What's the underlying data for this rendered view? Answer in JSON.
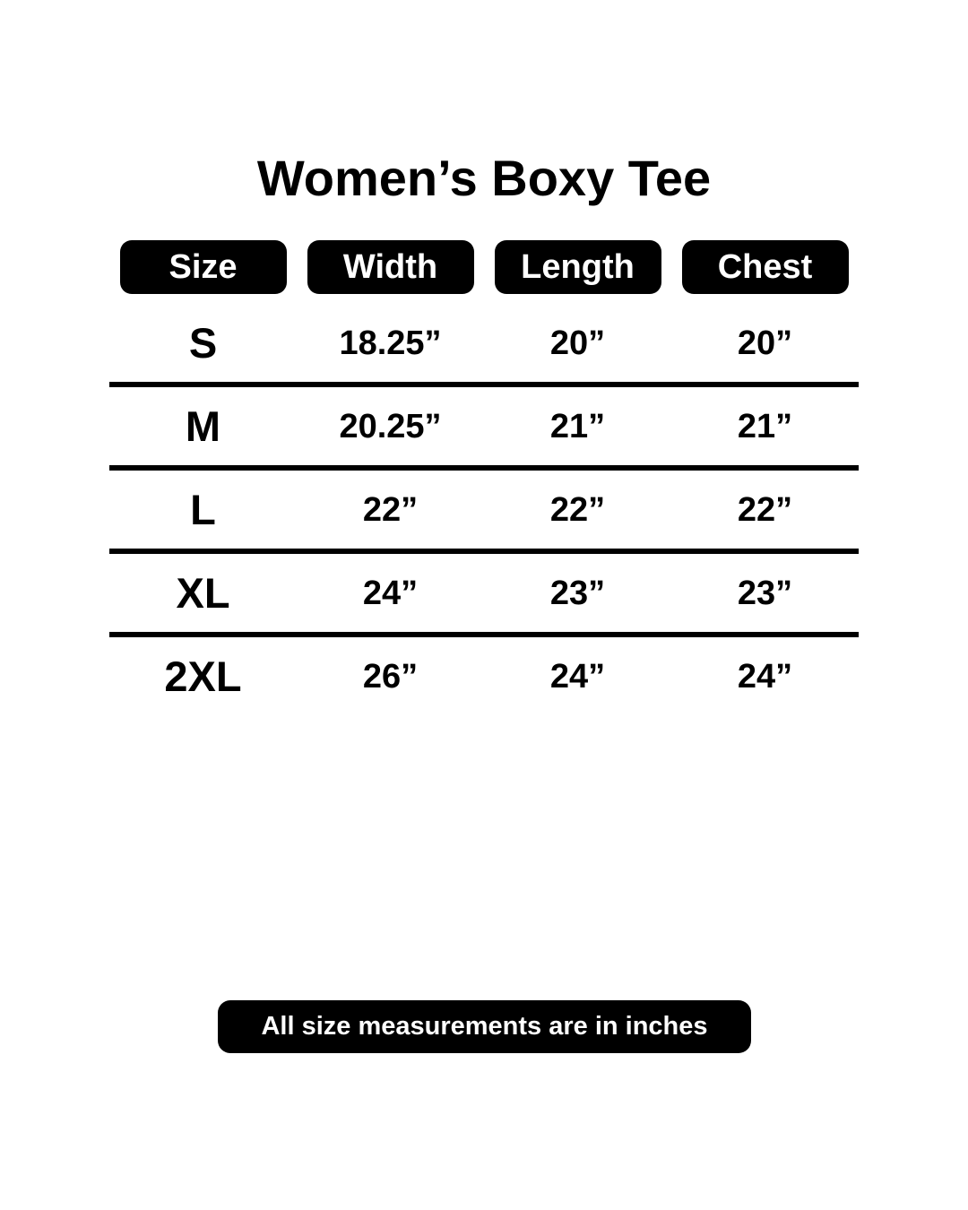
{
  "title": "Women’s Boxy Tee",
  "chart_data": {
    "type": "table",
    "title": "Women’s Boxy Tee",
    "columns": [
      "Size",
      "Width",
      "Length",
      "Chest"
    ],
    "categories": [
      "S",
      "M",
      "L",
      "XL",
      "2XL"
    ],
    "rows": [
      [
        "S",
        "18.25”",
        "20”",
        "20”"
      ],
      [
        "M",
        "20.25”",
        "21”",
        "21”"
      ],
      [
        "L",
        "22”",
        "22”",
        "22”"
      ],
      [
        "XL",
        "24”",
        "23”",
        "23”"
      ],
      [
        "2XL",
        "26”",
        "24”",
        "24”"
      ]
    ],
    "series": [
      {
        "name": "Width",
        "values": [
          18.25,
          20.25,
          22,
          24,
          26
        ]
      },
      {
        "name": "Length",
        "values": [
          20,
          21,
          22,
          23,
          24
        ]
      },
      {
        "name": "Chest",
        "values": [
          20,
          21,
          22,
          23,
          24
        ]
      }
    ],
    "units": "inches",
    "layout": {
      "grid": "horizontal row dividers only",
      "header_style": "black rounded pills"
    }
  },
  "footer": {
    "note": "All size measurements are in inches"
  },
  "colors": {
    "paper": "#ffffff",
    "ink": "#000000",
    "pill_background": "#000000",
    "pill_text": "#ffffff"
  }
}
